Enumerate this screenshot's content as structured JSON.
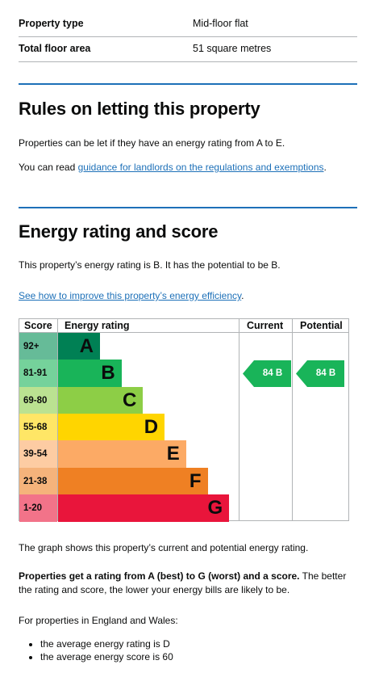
{
  "summary": [
    {
      "label": "Property type",
      "value": "Mid-floor flat"
    },
    {
      "label": "Total floor area",
      "value": "51 square metres"
    }
  ],
  "letting": {
    "heading": "Rules on letting this property",
    "paragraph": "Properties can be let if they have an energy rating from A to E.",
    "guidance_prefix": "You can read ",
    "guidance_link": "guidance for landlords on the regulations and exemptions",
    "guidance_suffix": "."
  },
  "energy": {
    "heading": "Energy rating and score",
    "rating_text": "This property’s energy rating is B. It has the potential to be B.",
    "improve_link": "See how to improve this property’s energy efficiency",
    "improve_suffix": "."
  },
  "chart_data": {
    "type": "table",
    "headers": {
      "score": "Score",
      "rating": "Energy rating",
      "current": "Current",
      "potential": "Potential"
    },
    "bands": [
      {
        "range": "92+",
        "letter": "A",
        "color": "#008054",
        "score_bg": "#66bb98"
      },
      {
        "range": "81-91",
        "letter": "B",
        "color": "#19b459",
        "score_bg": "#75d29b"
      },
      {
        "range": "69-80",
        "letter": "C",
        "color": "#8dce46",
        "score_bg": "#bbe291"
      },
      {
        "range": "55-68",
        "letter": "D",
        "color": "#ffd500",
        "score_bg": "#ffe666"
      },
      {
        "range": "39-54",
        "letter": "E",
        "color": "#fcaa65",
        "score_bg": "#fdcca3"
      },
      {
        "range": "21-38",
        "letter": "F",
        "color": "#ef8023",
        "score_bg": "#f5b37b"
      },
      {
        "range": "1-20",
        "letter": "G",
        "color": "#e9153b",
        "score_bg": "#f27389"
      }
    ],
    "current": {
      "score": 84,
      "letter": "B",
      "label": "84  B"
    },
    "potential": {
      "score": 84,
      "letter": "B",
      "label": "84  B"
    }
  },
  "graph_caption": "The graph shows this property’s current and potential energy rating.",
  "scale": {
    "bold": "Properties get a rating from A (best) to G (worst) and a score.",
    "rest": " The better the rating and score, the lower your energy bills are likely to be."
  },
  "averages": {
    "intro": "For properties in England and Wales:",
    "items": [
      "the average energy rating is D",
      "the average energy score is 60"
    ]
  }
}
